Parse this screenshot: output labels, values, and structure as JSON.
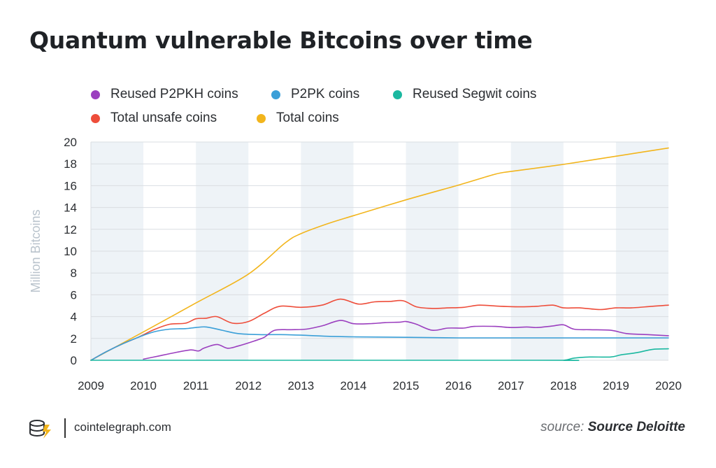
{
  "title": "Quantum vulnerable Bitcoins over time",
  "footer": {
    "site": "cointelegraph.com",
    "source_prefix": "source:",
    "source_name": "Source Deloitte"
  },
  "colors": {
    "reused_p2pkh": "#9b3fbf",
    "p2pk": "#3a9fd8",
    "reused_segwit": "#1ab8a0",
    "total_unsafe": "#ee4d3a",
    "total": "#f2b51c",
    "band": "#eef3f7",
    "grid": "#d9dde2",
    "axis_label": "#b9c3cc"
  },
  "chart_data": {
    "type": "line",
    "title": "Quantum vulnerable Bitcoins over time",
    "xlabel": "",
    "ylabel": "Million Bitcoins",
    "xlim": [
      2009,
      2020
    ],
    "ylim": [
      0,
      20
    ],
    "x_ticks": [
      "2009",
      "2010",
      "2011",
      "2012",
      "2013",
      "2014",
      "2015",
      "2016",
      "2017",
      "2018",
      "2019",
      "2020"
    ],
    "y_ticks": [
      "0",
      "2",
      "4",
      "6",
      "8",
      "10",
      "12",
      "14",
      "16",
      "18",
      "20"
    ],
    "grid": true,
    "legend": "top",
    "series": [
      {
        "name": "Reused P2PKH coins",
        "color_key": "reused_p2pkh",
        "x": [
          2010.0,
          2010.3,
          2010.6,
          2010.9,
          2011.05,
          2011.15,
          2011.4,
          2011.6,
          2011.8,
          2012.1,
          2012.3,
          2012.5,
          2012.8,
          2013.1,
          2013.4,
          2013.75,
          2014.0,
          2014.3,
          2014.6,
          2014.9,
          2015.0,
          2015.2,
          2015.5,
          2015.8,
          2016.1,
          2016.3,
          2016.7,
          2017.0,
          2017.3,
          2017.5,
          2017.8,
          2018.0,
          2018.2,
          2018.5,
          2018.9,
          2019.2,
          2019.6,
          2020.0
        ],
        "values": [
          0.1,
          0.4,
          0.7,
          0.95,
          0.85,
          1.1,
          1.45,
          1.1,
          1.3,
          1.75,
          2.1,
          2.75,
          2.8,
          2.85,
          3.15,
          3.65,
          3.35,
          3.35,
          3.45,
          3.5,
          3.55,
          3.3,
          2.75,
          2.95,
          2.95,
          3.1,
          3.1,
          3.0,
          3.05,
          3.0,
          3.15,
          3.25,
          2.85,
          2.8,
          2.75,
          2.45,
          2.35,
          2.25
        ]
      },
      {
        "name": "P2PK coins",
        "color_key": "p2pk",
        "x": [
          2009.0,
          2009.3,
          2009.6,
          2009.9,
          2010.2,
          2010.5,
          2010.8,
          2011.0,
          2011.2,
          2011.5,
          2011.8,
          2012.2,
          2012.6,
          2013.0,
          2013.5,
          2014.0,
          2015.0,
          2016.0,
          2017.0,
          2018.0,
          2019.0,
          2020.0
        ],
        "values": [
          0.0,
          0.8,
          1.5,
          2.1,
          2.6,
          2.85,
          2.9,
          3.0,
          3.05,
          2.75,
          2.45,
          2.35,
          2.35,
          2.3,
          2.2,
          2.15,
          2.1,
          2.05,
          2.05,
          2.05,
          2.05,
          2.05
        ]
      },
      {
        "name": "Reused Segwit coins",
        "color_key": "reused_segwit",
        "x": [
          2009.0,
          2017.5,
          2018.0,
          2018.2,
          2018.5,
          2018.9,
          2019.1,
          2019.4,
          2019.7,
          2020.0
        ],
        "values": [
          0.0,
          0.0,
          0.0,
          0.2,
          0.3,
          0.3,
          0.5,
          0.7,
          1.0,
          1.05
        ]
      },
      {
        "name": "Total unsafe coins",
        "color_key": "total_unsafe",
        "x": [
          2009.0,
          2009.3,
          2009.6,
          2009.9,
          2010.2,
          2010.5,
          2010.8,
          2011.0,
          2011.2,
          2011.4,
          2011.7,
          2012.0,
          2012.3,
          2012.6,
          2013.0,
          2013.4,
          2013.75,
          2014.1,
          2014.4,
          2014.7,
          2014.95,
          2015.2,
          2015.5,
          2015.8,
          2016.1,
          2016.4,
          2016.8,
          2017.2,
          2017.5,
          2017.8,
          2018.0,
          2018.3,
          2018.7,
          2019.0,
          2019.3,
          2019.7,
          2020.0
        ],
        "values": [
          0.0,
          0.8,
          1.5,
          2.1,
          2.8,
          3.3,
          3.4,
          3.8,
          3.85,
          4.0,
          3.4,
          3.55,
          4.3,
          4.95,
          4.85,
          5.05,
          5.6,
          5.15,
          5.35,
          5.4,
          5.45,
          4.9,
          4.75,
          4.8,
          4.85,
          5.05,
          4.95,
          4.9,
          4.95,
          5.05,
          4.8,
          4.8,
          4.65,
          4.8,
          4.8,
          4.95,
          5.05
        ]
      },
      {
        "name": "Total coins",
        "color_key": "total",
        "x": [
          2009.0,
          2010.0,
          2011.0,
          2012.0,
          2012.7,
          2013.0,
          2013.5,
          2014.0,
          2015.0,
          2016.0,
          2016.7,
          2017.0,
          2018.0,
          2019.0,
          2020.0
        ],
        "values": [
          0.0,
          2.6,
          5.25,
          7.9,
          10.75,
          11.6,
          12.5,
          13.25,
          14.7,
          16.05,
          17.05,
          17.3,
          17.95,
          18.7,
          19.45
        ]
      }
    ]
  }
}
